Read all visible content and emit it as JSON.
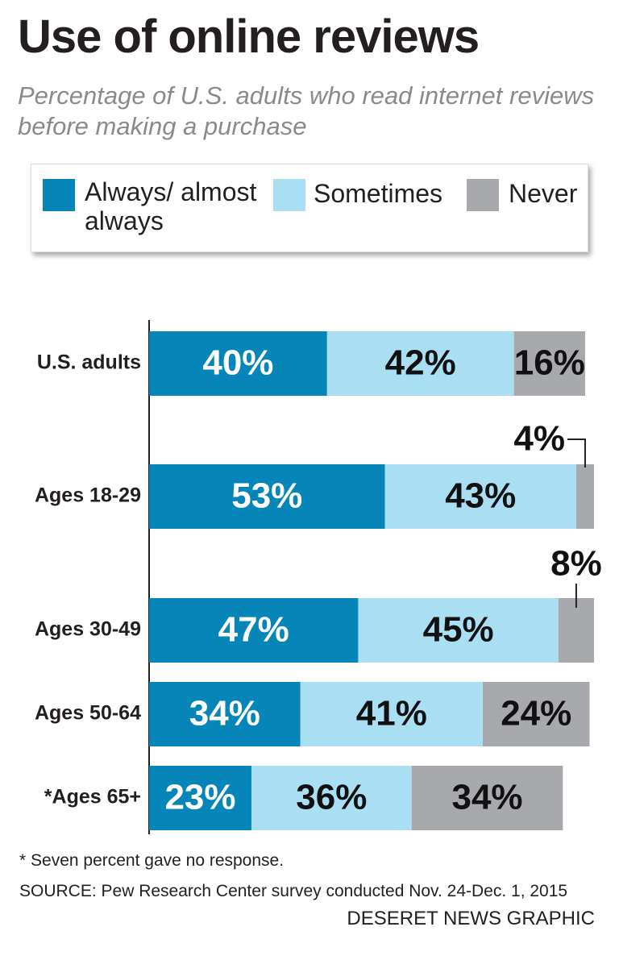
{
  "chart_data": {
    "type": "stacked-bar-horizontal",
    "title": "Use of online reviews",
    "subtitle": "Percentage of U.S. adults who read internet reviews before making a purchase",
    "categories": [
      "U.S. adults",
      "Ages 18-29",
      "Ages 30-49",
      "Ages 50-64",
      "*Ages 65+"
    ],
    "series": [
      {
        "name": "Always/ almost always",
        "color": "#0585b8",
        "values": [
          40,
          53,
          47,
          34,
          23
        ],
        "value_labels": [
          "40%",
          "53%",
          "47%",
          "34%",
          "23%"
        ]
      },
      {
        "name": "Sometimes",
        "color": "#aadff3",
        "values": [
          42,
          43,
          45,
          41,
          36
        ],
        "value_labels": [
          "42%",
          "43%",
          "45%",
          "41%",
          "36%"
        ]
      },
      {
        "name": "Never",
        "color": "#a7a9ac",
        "values": [
          16,
          4,
          8,
          24,
          34
        ],
        "value_labels": [
          "16%",
          "4%",
          "8%",
          "24%",
          "34%"
        ]
      }
    ],
    "footnote": "* Seven percent gave no response.",
    "source": "SOURCE: Pew Research Center  survey conducted Nov. 24-Dec. 1, 2015",
    "credit": "DESERET NEWS GRAPHIC"
  }
}
